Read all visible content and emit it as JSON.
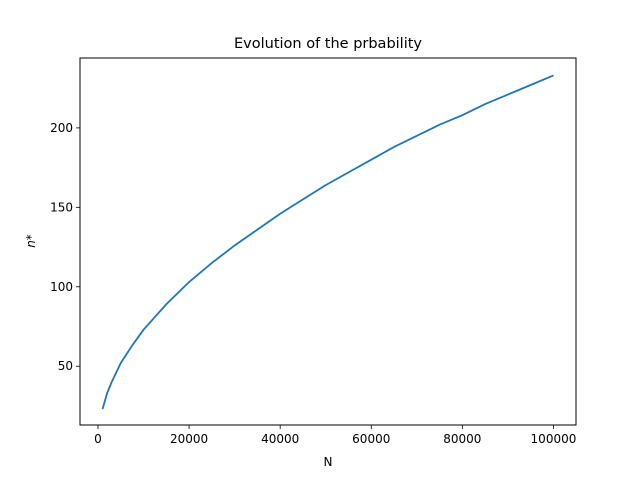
{
  "chart_data": {
    "type": "line",
    "title": "Evolution of the prbability",
    "xlabel": "N",
    "ylabel": "n*",
    "xlim": [
      -3950,
      104950
    ],
    "ylim": [
      13,
      244
    ],
    "xticks": [
      0,
      20000,
      40000,
      60000,
      80000,
      100000
    ],
    "xtick_labels": [
      "0",
      "20000",
      "40000",
      "60000",
      "80000",
      "100000"
    ],
    "yticks": [
      50,
      100,
      150,
      200
    ],
    "ytick_labels": [
      "50",
      "100",
      "150",
      "200"
    ],
    "grid": false,
    "series": [
      {
        "color": "#1f77b4",
        "x": [
          1000,
          2000,
          3000,
          5000,
          7500,
          10000,
          15000,
          20000,
          25000,
          30000,
          35000,
          40000,
          45000,
          50000,
          55000,
          60000,
          65000,
          70000,
          75000,
          80000,
          85000,
          90000,
          95000,
          100000
        ],
        "y": [
          23,
          33,
          40,
          52,
          63,
          73,
          89,
          103,
          115,
          126,
          136,
          146,
          155,
          164,
          172,
          180,
          188,
          195,
          202,
          208,
          215,
          221,
          227,
          233
        ]
      }
    ]
  }
}
